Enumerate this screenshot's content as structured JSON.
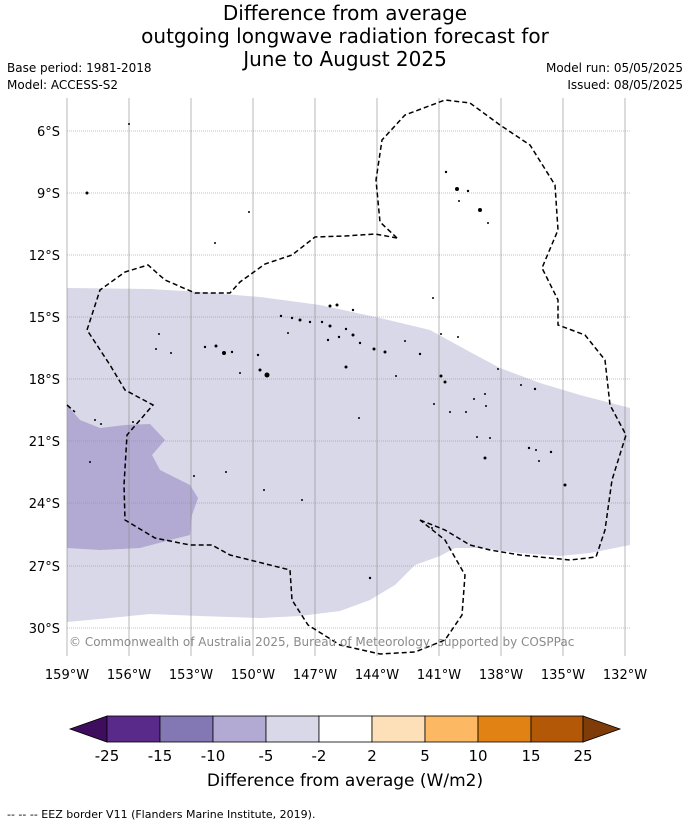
{
  "title": {
    "line1": "Difference from average",
    "line2": "outgoing longwave radiation forecast for",
    "line3": "June to August 2025"
  },
  "meta": {
    "base_period": "Base period: 1981-2018",
    "model": "Model: ACCESS-S2",
    "model_run": "Model run: 05/05/2025",
    "issued": "Issued: 08/05/2025"
  },
  "copyright": "© Commonwealth of Australia 2025, Bureau of Meteorology, supported by COSPPac",
  "axes": {
    "lat_labels": [
      "6°S",
      "9°S",
      "12°S",
      "15°S",
      "18°S",
      "21°S",
      "24°S",
      "27°S",
      "30°S"
    ],
    "lon_labels": [
      "159°W",
      "156°W",
      "153°W",
      "150°W",
      "147°W",
      "144°W",
      "141°W",
      "138°W",
      "135°W",
      "132°W"
    ]
  },
  "colorbar": {
    "title": "Difference from average (W/m2)",
    "ticks": [
      "-25",
      "-15",
      "-10",
      "-5",
      "-2",
      "2",
      "5",
      "10",
      "15",
      "25"
    ],
    "colors": [
      "#3f0d5e",
      "#5a2a8a",
      "#8378b4",
      "#b2aad2",
      "#d8d8e8",
      "#ffffff",
      "#fde0b7",
      "#fdb863",
      "#e08214",
      "#b35806",
      "#7f3b08"
    ]
  },
  "legend_footer": "--  --  -- EEZ border V11 (Flanders Marine Institute, 2019)."
}
